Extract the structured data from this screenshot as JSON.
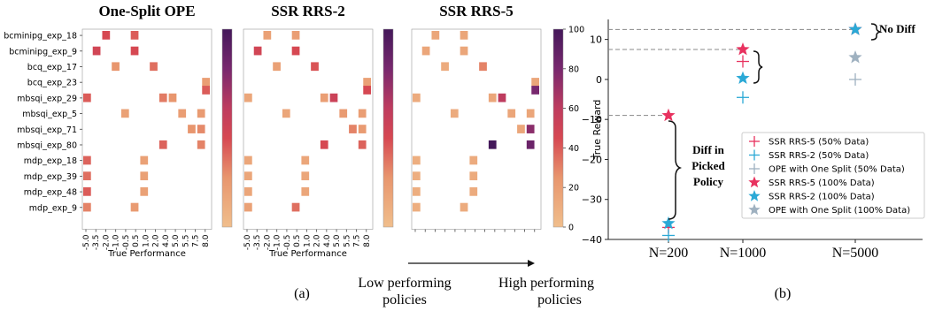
{
  "chart_data": [
    {
      "type": "heatmap",
      "title": "One-Split OPE",
      "xlabel": "True Performance",
      "rows": [
        "bcminipg_exp_18",
        "bcminipg_exp_9",
        "bcq_exp_17",
        "bcq_exp_23",
        "mbsqi_exp_29",
        "mbsqi_exp_5",
        "mbsqi_exp_71",
        "mbsqi_exp_80",
        "mdp_exp_18",
        "mdp_exp_39",
        "mdp_exp_48",
        "mdp_exp_9"
      ],
      "x_ticks": [
        "-5.0",
        "-3.5",
        "-2.0",
        "-1.0",
        "-0.5",
        "0.5",
        "1.0",
        "2.0",
        "4.0",
        "5.0",
        "5.5",
        "7.5",
        "8.0"
      ],
      "cells": [
        [
          0,
          2,
          45
        ],
        [
          0,
          5,
          40
        ],
        [
          1,
          1,
          48
        ],
        [
          1,
          5,
          45
        ],
        [
          2,
          3,
          25
        ],
        [
          2,
          7,
          35
        ],
        [
          3,
          13,
          20
        ],
        [
          3,
          13,
          40
        ],
        [
          4,
          0,
          40
        ],
        [
          4,
          9,
          25
        ],
        [
          4,
          8,
          32
        ],
        [
          5,
          4,
          18
        ],
        [
          5,
          10,
          20
        ],
        [
          5,
          12,
          22
        ],
        [
          6,
          11,
          25
        ],
        [
          6,
          12,
          28
        ],
        [
          7,
          8,
          38
        ],
        [
          7,
          12,
          30
        ],
        [
          8,
          0,
          38
        ],
        [
          8,
          6,
          18
        ],
        [
          9,
          0,
          35
        ],
        [
          9,
          6,
          18
        ],
        [
          10,
          0,
          40
        ],
        [
          10,
          6,
          18
        ],
        [
          11,
          0,
          30
        ],
        [
          11,
          5,
          22
        ]
      ],
      "colorbar": {
        "min": 0,
        "max": 100,
        "ticks": [
          "0",
          "20",
          "40",
          "60",
          "80",
          "100"
        ]
      }
    },
    {
      "type": "heatmap",
      "title": "SSR RRS-2",
      "xlabel": "True Performance",
      "x_ticks": [
        "-5.0",
        "-3.5",
        "-2.0",
        "-1.0",
        "-0.5",
        "0.5",
        "1.0",
        "2.0",
        "4.0",
        "5.0",
        "5.5",
        "7.5",
        "8.0"
      ],
      "cells": [
        [
          0,
          2,
          18
        ],
        [
          0,
          5,
          20
        ],
        [
          1,
          1,
          48
        ],
        [
          1,
          5,
          45
        ],
        [
          2,
          3,
          18
        ],
        [
          2,
          7,
          42
        ],
        [
          3,
          13,
          18
        ],
        [
          3,
          13,
          45
        ],
        [
          4,
          0,
          15
        ],
        [
          4,
          9,
          52
        ],
        [
          4,
          8,
          20
        ],
        [
          5,
          4,
          15
        ],
        [
          5,
          10,
          22
        ],
        [
          5,
          12,
          20
        ],
        [
          6,
          11,
          30
        ],
        [
          6,
          12,
          22
        ],
        [
          7,
          8,
          45
        ],
        [
          7,
          12,
          38
        ],
        [
          8,
          0,
          15
        ],
        [
          8,
          6,
          15
        ],
        [
          9,
          0,
          15
        ],
        [
          9,
          6,
          15
        ],
        [
          10,
          0,
          15
        ],
        [
          10,
          6,
          15
        ],
        [
          11,
          0,
          18
        ],
        [
          11,
          5,
          35
        ]
      ]
    },
    {
      "type": "heatmap",
      "title": "SSR RRS-5",
      "xlabel": "",
      "x_ticks": [],
      "annotation": {
        "left": "Low performing policies",
        "right": "High performing policies"
      },
      "cells": [
        [
          0,
          2,
          15
        ],
        [
          0,
          5,
          15
        ],
        [
          1,
          1,
          15
        ],
        [
          1,
          5,
          15
        ],
        [
          2,
          3,
          12
        ],
        [
          2,
          7,
          30
        ],
        [
          3,
          13,
          15
        ],
        [
          3,
          13,
          80
        ],
        [
          4,
          0,
          12
        ],
        [
          4,
          9,
          60
        ],
        [
          4,
          8,
          15
        ],
        [
          5,
          4,
          12
        ],
        [
          5,
          10,
          15
        ],
        [
          5,
          12,
          15
        ],
        [
          6,
          11,
          15
        ],
        [
          6,
          12,
          75
        ],
        [
          7,
          8,
          100
        ],
        [
          7,
          12,
          85
        ],
        [
          8,
          0,
          10
        ],
        [
          8,
          6,
          12
        ],
        [
          9,
          0,
          10
        ],
        [
          9,
          6,
          12
        ],
        [
          10,
          0,
          10
        ],
        [
          10,
          6,
          12
        ],
        [
          11,
          0,
          10
        ],
        [
          11,
          5,
          12
        ]
      ]
    },
    {
      "type": "scatter",
      "ylabel": "True Reward",
      "categories": [
        "N=200",
        "N=1000",
        "N=5000"
      ],
      "ylim": [
        -40,
        15
      ],
      "y_ticks": [
        "−40",
        "−30",
        "−20",
        "−10",
        "0",
        "10"
      ],
      "series": [
        {
          "name": "SSR RRS-5 (50% Data)",
          "marker": "plus",
          "color": "#e8325f",
          "values": [
            -37,
            4.5,
            null
          ]
        },
        {
          "name": "SSR RRS-2 (50% Data)",
          "marker": "plus",
          "color": "#2ba9d6",
          "values": [
            -39,
            -4.5,
            null
          ]
        },
        {
          "name": "OPE with One Split (50% Data)",
          "marker": "plus",
          "color": "#9fb1c0",
          "values": [
            null,
            null,
            0
          ]
        },
        {
          "name": "SSR RRS-5 (100% Data)",
          "marker": "star",
          "color": "#e8325f",
          "values": [
            -9,
            7.5,
            12.5
          ]
        },
        {
          "name": "SSR RRS-2 (100% Data)",
          "marker": "star",
          "color": "#2ba9d6",
          "values": [
            -36,
            0.3,
            12.5
          ]
        },
        {
          "name": "OPE with One Split (100% Data)",
          "marker": "star",
          "color": "#9fb1c0",
          "values": [
            null,
            null,
            5.5
          ]
        }
      ],
      "annotations": [
        "No Diff",
        "Diff in",
        "Picked",
        "Policy"
      ]
    }
  ],
  "captions": {
    "a": "(a)",
    "b": "(b)"
  }
}
